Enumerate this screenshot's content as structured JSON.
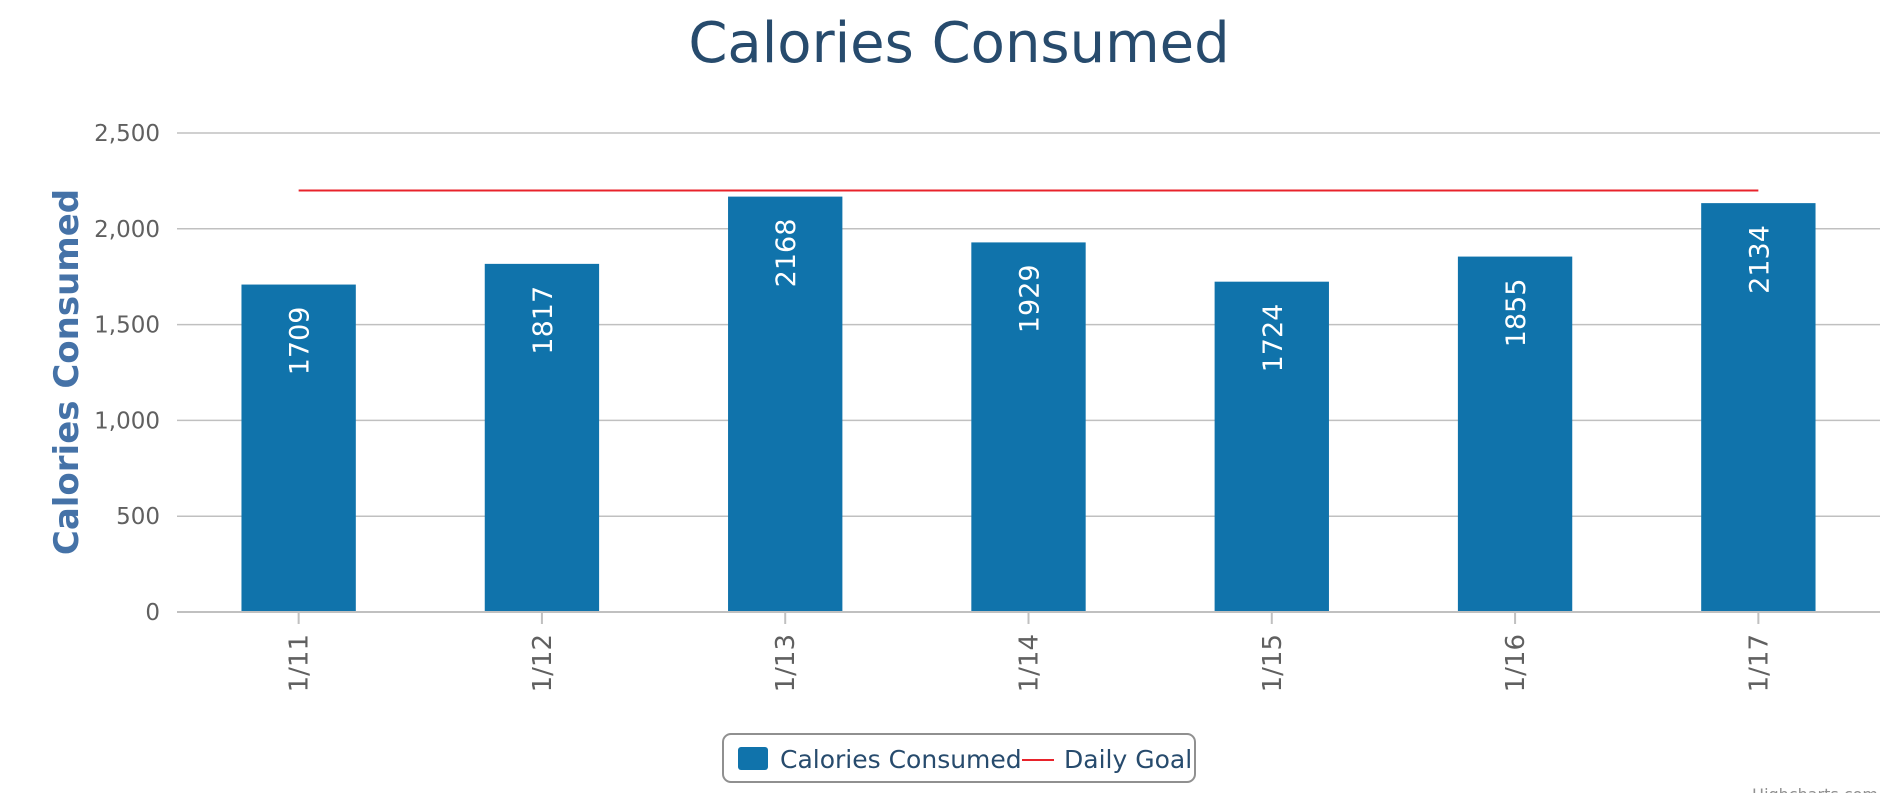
{
  "chart_data": {
    "type": "bar",
    "title": "Calories Consumed",
    "ylabel": "Calories Consumed",
    "xlabel": "",
    "categories": [
      "1/11",
      "1/12",
      "1/13",
      "1/14",
      "1/15",
      "1/16",
      "1/17"
    ],
    "series": [
      {
        "name": "Calories Consumed",
        "type": "bar",
        "color": "#1073ab",
        "values": [
          1709,
          1817,
          2168,
          1929,
          1724,
          1855,
          2134
        ]
      },
      {
        "name": "Daily Goal",
        "type": "line",
        "color": "#e8232b",
        "values": [
          2200,
          2200,
          2200,
          2200,
          2200,
          2200,
          2200
        ]
      }
    ],
    "ylim": [
      0,
      2500
    ],
    "yticks": [
      0,
      500,
      1000,
      1500,
      2000,
      2500
    ],
    "ytick_labels": [
      "0",
      "500",
      "1,000",
      "1,500",
      "2,000",
      "2,500"
    ],
    "grid": true,
    "legend": "bottom-center",
    "credit": "Highcharts.com"
  }
}
